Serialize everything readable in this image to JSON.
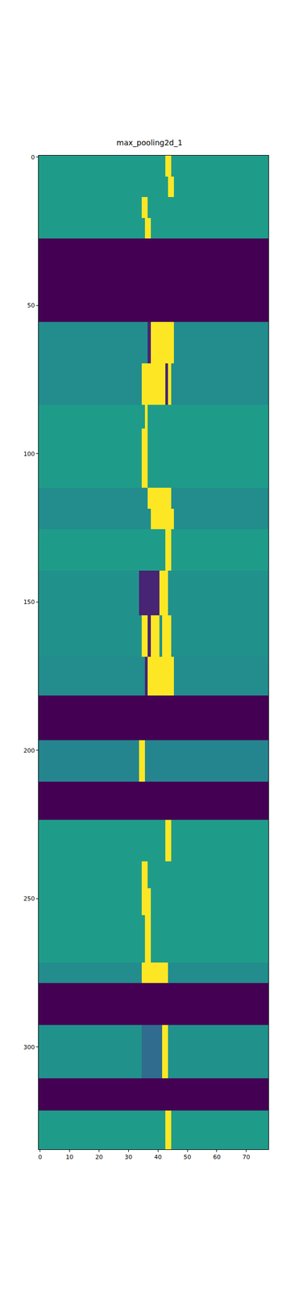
{
  "chart_data": {
    "type": "heatmap",
    "title": "max_pooling2d_1",
    "color": "Viridis",
    "zlim": [
      0,
      1
    ],
    "xlim": [
      -0.5,
      77.5
    ],
    "ylim": [
      334.5,
      -0.5
    ],
    "xticks": [
      0,
      10,
      20,
      30,
      40,
      50,
      60,
      70
    ],
    "yticks": [
      0,
      50,
      100,
      150,
      200,
      250,
      300
    ],
    "x_edges": [
      -0.5,
      33.5,
      34.5,
      35.5,
      36.5,
      37.5,
      38.5,
      39.5,
      40.5,
      41.5,
      42.5,
      43.5,
      44.5,
      45.5,
      46.5,
      77.5
    ],
    "y_edges": [
      -0.5,
      6.5,
      13.5,
      20.5,
      27.5,
      55.5,
      69.5,
      83.5,
      91.5,
      111.5,
      118.5,
      125.5,
      139.5,
      154.5,
      168.5,
      181.5,
      196.5,
      210.5,
      223.5,
      237.5,
      246.5,
      255.5,
      271.5,
      278.5,
      292.5,
      310.5,
      321.5,
      334.5
    ],
    "cells": [
      [
        0.55,
        0.55,
        0.55,
        0.55,
        0.55,
        0.55,
        0.55,
        0.55,
        0.55,
        0.55,
        1,
        1,
        0.55,
        0.55,
        0.55
      ],
      [
        0.55,
        0.55,
        0.55,
        0.55,
        0.55,
        0.55,
        0.55,
        0.55,
        0.55,
        0.55,
        0.55,
        1,
        1,
        0.55,
        0.55
      ],
      [
        0.55,
        0.55,
        1,
        1,
        0.55,
        0.55,
        0.55,
        0.55,
        0.55,
        0.55,
        0.55,
        0.55,
        0.55,
        0.55,
        0.55
      ],
      [
        0.55,
        0.55,
        0.55,
        1,
        1,
        0.55,
        0.55,
        0.55,
        0.55,
        0.55,
        0.55,
        0.55,
        0.55,
        0.55,
        0.55
      ],
      [
        0,
        0,
        0,
        0,
        0,
        0,
        0,
        0,
        0,
        0,
        0,
        0,
        0,
        0,
        0
      ],
      [
        0.48,
        0.48,
        0.48,
        0.48,
        0.1,
        1,
        1,
        1,
        1,
        1,
        1,
        1,
        1,
        0.48,
        0.48
      ],
      [
        0.48,
        0.48,
        1,
        1,
        1,
        1,
        1,
        1,
        1,
        1,
        0.1,
        1,
        0.48,
        0.48,
        0.48
      ],
      [
        0.55,
        0.55,
        0.55,
        1,
        0.55,
        0.55,
        0.55,
        0.55,
        0.55,
        0.55,
        0.55,
        0.55,
        0.55,
        0.55,
        0.55
      ],
      [
        0.55,
        0.55,
        1,
        1,
        0.55,
        0.55,
        0.55,
        0.55,
        0.55,
        0.55,
        0.55,
        0.55,
        0.55,
        0.55,
        0.55
      ],
      [
        0.48,
        0.48,
        0.48,
        0.48,
        1,
        1,
        1,
        1,
        1,
        1,
        1,
        1,
        0.48,
        0.48,
        0.48
      ],
      [
        0.48,
        0.48,
        0.48,
        0.48,
        0.48,
        1,
        1,
        1,
        1,
        1,
        1,
        1,
        1,
        0.48,
        0.48
      ],
      [
        0.55,
        0.55,
        0.55,
        0.55,
        0.55,
        0.55,
        0.55,
        0.55,
        0.55,
        0.55,
        1,
        1,
        0.55,
        0.55,
        0.55
      ],
      [
        0.5,
        0.1,
        0.1,
        0.1,
        0.1,
        0.1,
        0.1,
        0.1,
        1,
        1,
        1,
        0.5,
        0.5,
        0.5,
        0.5
      ],
      [
        0.5,
        0.5,
        1,
        1,
        0.1,
        1,
        1,
        1,
        0.5,
        1,
        1,
        1,
        0.5,
        0.5,
        0.5
      ],
      [
        0.48,
        0.48,
        0.48,
        0.1,
        1,
        1,
        1,
        1,
        1,
        1,
        1,
        1,
        1,
        0.48,
        0.48
      ],
      [
        0,
        0,
        0,
        0,
        0,
        0,
        0,
        0,
        0,
        0,
        0,
        0,
        0,
        0,
        0
      ],
      [
        0.45,
        1,
        1,
        0.45,
        0.45,
        0.45,
        0.45,
        0.45,
        0.45,
        0.45,
        0.45,
        0.45,
        0.45,
        0.45,
        0.45
      ],
      [
        0,
        0,
        0,
        0,
        0,
        0,
        0,
        0,
        0,
        0,
        0,
        0,
        0,
        0,
        0
      ],
      [
        0.55,
        0.55,
        0.55,
        0.55,
        0.55,
        0.55,
        0.55,
        0.55,
        0.55,
        0.55,
        1,
        1,
        0.55,
        0.55,
        0.55
      ],
      [
        0.55,
        0.55,
        1,
        1,
        0.55,
        0.55,
        0.55,
        0.55,
        0.55,
        0.55,
        0.55,
        0.55,
        0.55,
        0.55,
        0.55
      ],
      [
        0.55,
        0.55,
        1,
        1,
        1,
        0.55,
        0.55,
        0.55,
        0.55,
        0.55,
        0.55,
        0.55,
        0.55,
        0.55,
        0.55
      ],
      [
        0.55,
        0.55,
        0.55,
        1,
        1,
        0.55,
        0.55,
        0.55,
        0.55,
        0.55,
        0.55,
        0.55,
        0.55,
        0.55,
        0.55
      ],
      [
        0.48,
        0.48,
        1,
        1,
        1,
        1,
        1,
        1,
        1,
        1,
        1,
        0.48,
        0.48,
        0.48,
        0.48
      ],
      [
        0,
        0,
        0,
        0,
        0,
        0,
        0,
        0,
        0,
        0,
        0,
        0,
        0,
        0,
        0
      ],
      [
        0.5,
        0.5,
        0.35,
        0.35,
        0.35,
        0.35,
        0.35,
        0.35,
        0.35,
        1,
        1,
        0.5,
        0.5,
        0.5,
        0.5
      ],
      [
        0,
        0,
        0,
        0,
        0,
        0,
        0,
        0,
        0,
        0,
        0,
        0,
        0,
        0,
        0
      ],
      [
        0.55,
        0.55,
        0.55,
        0.55,
        0.55,
        0.55,
        0.55,
        0.55,
        0.55,
        0.55,
        1,
        1,
        0.55,
        0.55,
        0.55
      ]
    ]
  }
}
